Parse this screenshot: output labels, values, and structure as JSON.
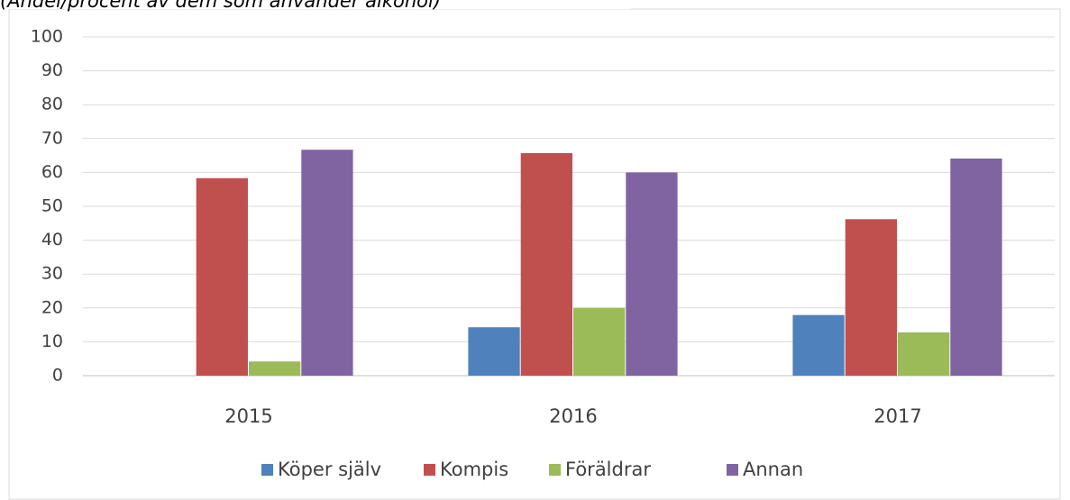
{
  "chart_data": {
    "type": "bar",
    "subtitle": "(Andel/procent av dem som använder alkohol)",
    "categories": [
      "2015",
      "2016",
      "2017"
    ],
    "series": [
      {
        "name": "Köper själv",
        "color": "#4f81bd",
        "values": [
          0,
          14.3,
          17.9
        ]
      },
      {
        "name": "Kompis",
        "color": "#c0504d",
        "values": [
          58.3,
          65.7,
          46.2
        ]
      },
      {
        "name": "Föräldrar",
        "color": "#9bbb59",
        "values": [
          4.2,
          20.0,
          12.8
        ]
      },
      {
        "name": "Annan",
        "color": "#8064a2",
        "values": [
          66.7,
          60.0,
          64.1
        ]
      }
    ],
    "ylim": [
      0,
      100
    ],
    "yticks": [
      0,
      10,
      20,
      30,
      40,
      50,
      60,
      70,
      80,
      90,
      100
    ],
    "grid": true,
    "legend": "bottom"
  }
}
